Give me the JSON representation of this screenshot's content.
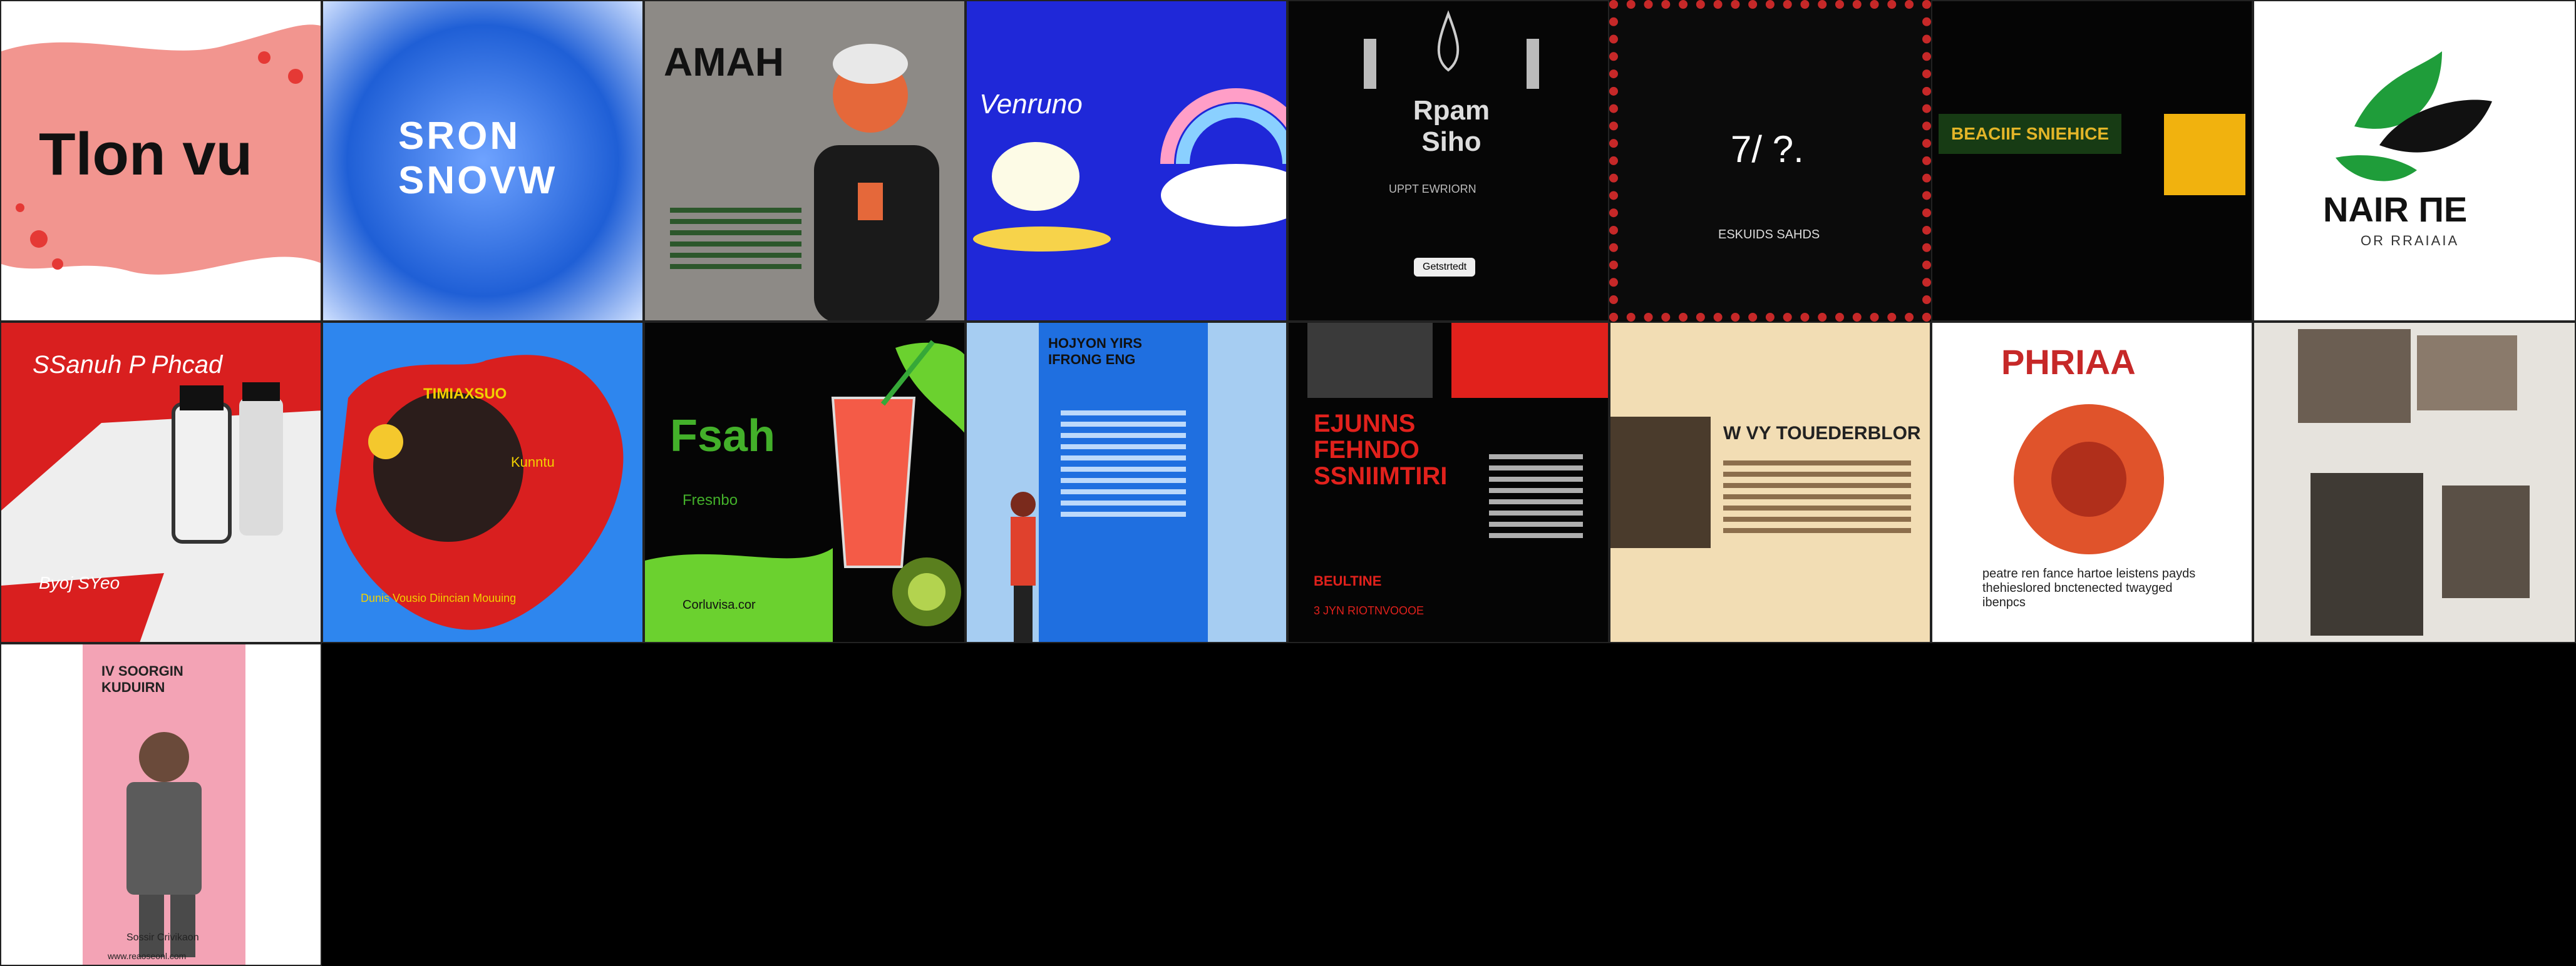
{
  "tiles": [
    {
      "id": 1,
      "text": "Tlon vu"
    },
    {
      "id": 2,
      "text": "SRON SNOVW"
    },
    {
      "id": 3,
      "text": "AMAH"
    },
    {
      "id": 4,
      "text": "Venruno"
    },
    {
      "id": 5,
      "text": "Rpam Siho",
      "small": "UPPT EWRIORN",
      "button": "Getstrtedt"
    },
    {
      "id": 6,
      "text": "7/ ?.",
      "small": "ESKUIDS SAHDS"
    },
    {
      "id": 7,
      "text": "BEACIIF SNIEHICE"
    },
    {
      "id": 8,
      "text": "NAIR ΠE",
      "small": "OR RRAIAIA"
    },
    {
      "id": 9,
      "text": "SSanuh P Phcad",
      "small": "Byoj SYeo"
    },
    {
      "id": 10,
      "text": "TIMIAXSUO",
      "small": "Dunis Vousio Diincian Mouuing",
      "side": "Kunntu"
    },
    {
      "id": 11,
      "text": "Fsah",
      "small": "Fresnbo",
      "footer": "Corluvisa.cor"
    },
    {
      "id": 12,
      "text": "HOJYON YIRS IFRONG ENG"
    },
    {
      "id": 13,
      "text": "EJUNNS FEHNDO SSNIIMTIRI",
      "small": "BEULTINE",
      "footer": "3 JYN RIOTNVOOOE"
    },
    {
      "id": 14,
      "text": "W VY TOUEDERBLOR"
    },
    {
      "id": 15,
      "text": "PHRIAA",
      "small": "peatre ren fance hartoe leistens payds thehieslored bnctenected twayged ibenpcs"
    },
    {
      "id": 16,
      "text": ""
    },
    {
      "id": 17,
      "text": "IV SOORGIN KUDUIRN",
      "small": "Sossir Crivikaon",
      "footer": "www.reaoseonl.com"
    }
  ]
}
